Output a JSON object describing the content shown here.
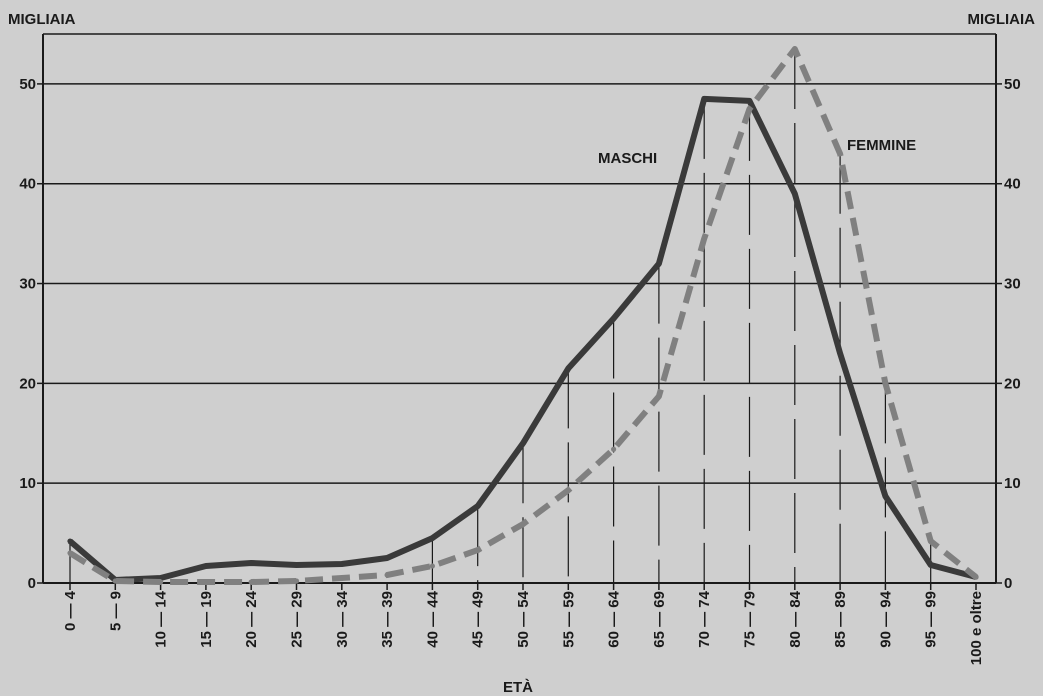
{
  "chart_data": {
    "type": "line",
    "xlabel": "ETÀ",
    "ylabel_left": "MIGLIAIA",
    "ylabel_right": "MIGLIAIA",
    "ylim": [
      0,
      55
    ],
    "yticks": [
      0,
      10,
      20,
      30,
      40,
      50
    ],
    "grid": true,
    "categories": [
      "0 — 4",
      "5 — 9",
      "10 — 14",
      "15 — 19",
      "20 — 24",
      "25 — 29",
      "30 — 34",
      "35 — 39",
      "40 — 44",
      "45 — 49",
      "50 — 54",
      "55 — 59",
      "60 — 64",
      "65 — 69",
      "70 — 74",
      "75 — 79",
      "80 — 84",
      "85 — 89",
      "90 — 94",
      "95 — 99",
      "100 e oltre"
    ],
    "series": [
      {
        "name": "MASCHI",
        "style": "solid",
        "color": "#3a3a3a",
        "values": [
          4.2,
          0.3,
          0.5,
          1.7,
          2.0,
          1.8,
          1.9,
          2.5,
          4.5,
          7.7,
          14.0,
          21.5,
          26.5,
          32.0,
          48.5,
          48.3,
          39.0,
          23.0,
          8.7,
          1.8,
          0.6
        ]
      },
      {
        "name": "FEMMINE",
        "style": "dashed",
        "color": "#808080",
        "values": [
          3.0,
          0.2,
          0.1,
          0.1,
          0.1,
          0.2,
          0.5,
          0.8,
          1.7,
          3.3,
          5.9,
          9.3,
          13.4,
          18.7,
          34.5,
          47.5,
          53.5,
          43.0,
          20.0,
          4.2,
          0.6
        ]
      }
    ]
  }
}
